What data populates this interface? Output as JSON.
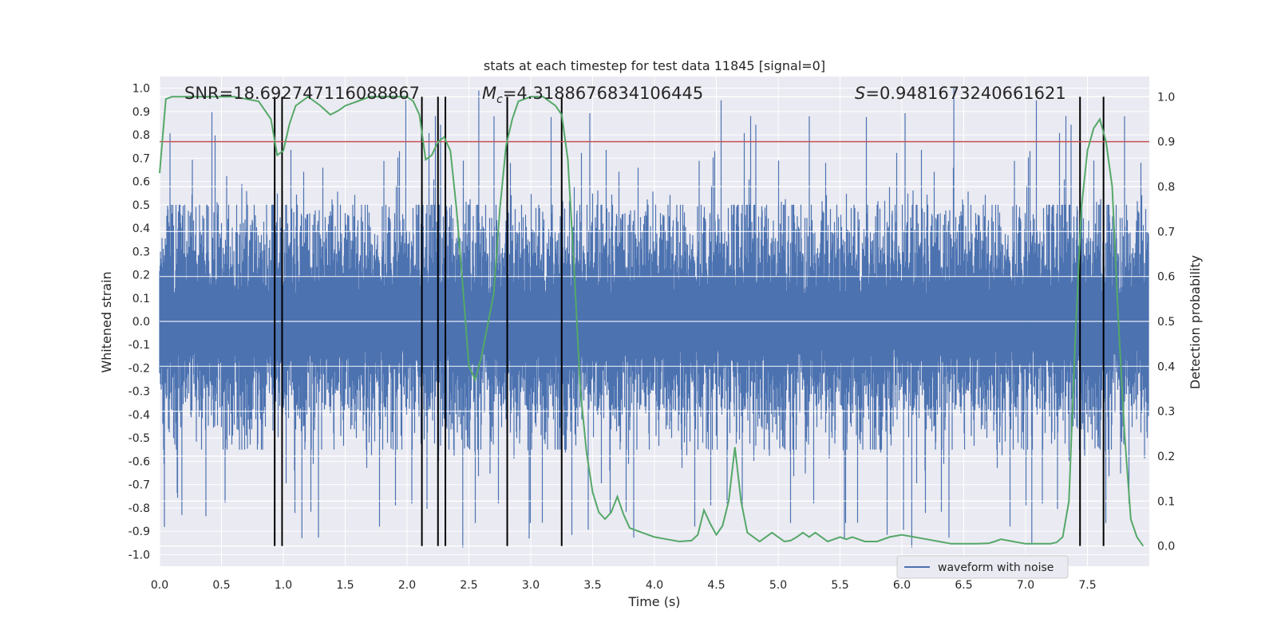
{
  "chart_data": {
    "type": "line",
    "title": "stats at each timestep for test data 11845 [signal=0]",
    "xlabel": "Time (s)",
    "ylabel_left": "Whitened strain",
    "ylabel_right": "Detection probability",
    "xlim": [
      0.0,
      8.0
    ],
    "ylim_left": [
      -1.05,
      1.05
    ],
    "ylim_right": [
      -0.045,
      1.045
    ],
    "x_ticks": [
      "0.0",
      "0.5",
      "1.0",
      "1.5",
      "2.0",
      "2.5",
      "3.0",
      "3.5",
      "4.0",
      "4.5",
      "5.0",
      "5.5",
      "6.0",
      "6.5",
      "7.0",
      "7.5"
    ],
    "y_ticks_left": [
      "1.0",
      "0.9",
      "0.8",
      "0.7",
      "0.6",
      "0.5",
      "0.4",
      "0.3",
      "0.2",
      "0.1",
      "0.0",
      "-0.1",
      "-0.2",
      "-0.3",
      "-0.4",
      "-0.5",
      "-0.6",
      "-0.7",
      "-0.8",
      "-0.9",
      "-1.0"
    ],
    "y_ticks_right": [
      "1.0",
      "0.9",
      "0.8",
      "0.7",
      "0.6",
      "0.5",
      "0.4",
      "0.3",
      "0.2",
      "0.1",
      "0.0"
    ],
    "annotations": {
      "snr": "SNR=18.692747116088867",
      "mc_symbol": "M",
      "mc_sub": "c",
      "mc_value": "=4.3188676834106445",
      "s_symbol": "S",
      "s_value": "=0.9481673240661621"
    },
    "legend": {
      "label": "waveform with noise",
      "position": "lower-right"
    },
    "threshold": {
      "value_right_axis": 0.9,
      "color": "#c44e52"
    },
    "event_lines_x": [
      0.93,
      0.99,
      2.12,
      2.25,
      2.31,
      2.81,
      3.25,
      7.44,
      7.63
    ],
    "waveform": {
      "name": "waveform with noise",
      "color": "#4c72b0",
      "core_std": 0.2,
      "typical_peak": 0.45,
      "max_peak": 1.0,
      "min_trough": -0.97
    },
    "probability": {
      "name": "detection probability",
      "color": "#55a868",
      "x": [
        0.0,
        0.05,
        0.1,
        0.2,
        0.4,
        0.6,
        0.8,
        0.85,
        0.9,
        0.95,
        1.0,
        1.05,
        1.1,
        1.2,
        1.25,
        1.3,
        1.38,
        1.45,
        1.5,
        1.6,
        1.7,
        1.8,
        1.9,
        2.0,
        2.05,
        2.1,
        2.15,
        2.2,
        2.25,
        2.3,
        2.35,
        2.4,
        2.45,
        2.5,
        2.55,
        2.6,
        2.7,
        2.75,
        2.8,
        2.85,
        2.9,
        3.0,
        3.1,
        3.2,
        3.25,
        3.3,
        3.35,
        3.4,
        3.45,
        3.5,
        3.55,
        3.6,
        3.65,
        3.7,
        3.75,
        3.8,
        3.9,
        4.0,
        4.1,
        4.2,
        4.3,
        4.35,
        4.4,
        4.45,
        4.5,
        4.55,
        4.6,
        4.65,
        4.7,
        4.75,
        4.8,
        4.85,
        4.9,
        4.95,
        5.0,
        5.05,
        5.1,
        5.15,
        5.2,
        5.25,
        5.3,
        5.35,
        5.4,
        5.5,
        5.55,
        5.6,
        5.7,
        5.8,
        5.9,
        6.0,
        6.1,
        6.2,
        6.3,
        6.4,
        6.6,
        6.7,
        6.75,
        6.8,
        6.9,
        7.0,
        7.1,
        7.2,
        7.25,
        7.3,
        7.35,
        7.4,
        7.45,
        7.5,
        7.55,
        7.6,
        7.65,
        7.7,
        7.75,
        7.8,
        7.85,
        7.9,
        7.95
      ],
      "y": [
        0.83,
        0.995,
        1.0,
        1.0,
        1.0,
        1.0,
        0.99,
        0.97,
        0.95,
        0.87,
        0.88,
        0.94,
        0.98,
        1.0,
        0.99,
        0.98,
        0.96,
        0.97,
        0.98,
        0.99,
        1.0,
        1.0,
        1.0,
        1.0,
        0.99,
        0.96,
        0.86,
        0.87,
        0.9,
        0.91,
        0.88,
        0.75,
        0.58,
        0.4,
        0.37,
        0.42,
        0.56,
        0.75,
        0.89,
        0.95,
        0.99,
        1.0,
        1.0,
        0.98,
        0.96,
        0.86,
        0.62,
        0.35,
        0.21,
        0.12,
        0.075,
        0.06,
        0.075,
        0.11,
        0.07,
        0.04,
        0.03,
        0.02,
        0.015,
        0.01,
        0.012,
        0.025,
        0.08,
        0.05,
        0.025,
        0.045,
        0.1,
        0.22,
        0.1,
        0.03,
        0.02,
        0.01,
        0.02,
        0.03,
        0.02,
        0.01,
        0.012,
        0.02,
        0.03,
        0.02,
        0.03,
        0.02,
        0.01,
        0.02,
        0.015,
        0.02,
        0.01,
        0.01,
        0.02,
        0.025,
        0.02,
        0.015,
        0.01,
        0.005,
        0.005,
        0.006,
        0.01,
        0.015,
        0.01,
        0.005,
        0.005,
        0.005,
        0.008,
        0.02,
        0.1,
        0.45,
        0.75,
        0.88,
        0.93,
        0.95,
        0.9,
        0.8,
        0.5,
        0.25,
        0.06,
        0.02,
        0.0
      ]
    }
  }
}
